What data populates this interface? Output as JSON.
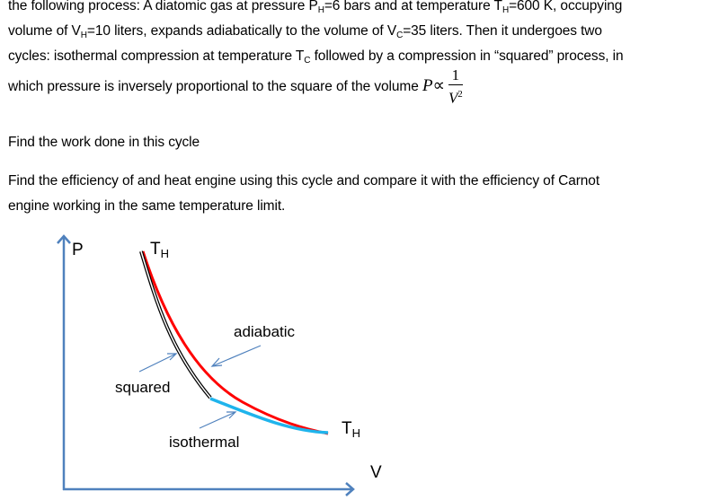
{
  "problem": {
    "line1": {
      "a": "the following process: A diatomic gas at pressure P",
      "sub1": "H",
      "b": "=6 bars and at temperature T",
      "sub2": "H",
      "c": "=600 K, occupying"
    },
    "line2": {
      "a": "volume of V",
      "sub1": "H",
      "b": "=10 liters, expands adiabatically to the volume of V",
      "sub2": "C",
      "c": "=35 liters. Then it undergoes two"
    },
    "line3": {
      "a": "cycles:  isothermal compression at temperature T",
      "sub1": "C",
      "b": " followed by a compression in “squared” process, in"
    },
    "line4": {
      "a": "which pressure is inversely proportional to the square of the volume ",
      "P": "P",
      "prop": "∝",
      "num": "1",
      "den": "V",
      "exp": "2"
    },
    "q1": "Find the work done in this cycle",
    "q2a": "Find the efficiency of and heat engine using this cycle and compare it with the efficiency of Carnot",
    "q2b": "engine working in the same temperature limit."
  },
  "diagram": {
    "p_axis": "P",
    "v_axis": "V",
    "top_T": "T",
    "top_T_sub": "H",
    "right_T": "T",
    "right_T_sub": "H",
    "adiabatic": "adiabatic",
    "squared": "squared",
    "isothermal": "isothermal",
    "colors": {
      "axis": "#4f81bd",
      "adiabatic": "#ff0000",
      "squared": "#000000",
      "isothermal": "#1fb4ec",
      "arrow": "#4f81bd"
    }
  }
}
